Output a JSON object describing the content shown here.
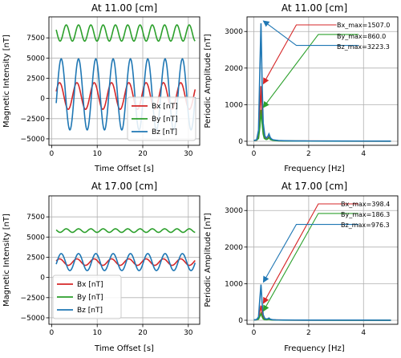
{
  "colors": {
    "Bx": "#d62728",
    "By": "#2ca02c",
    "Bz": "#1f77b4"
  },
  "chart_data": [
    {
      "type": "line",
      "title": "At 11.00 [cm]",
      "xlabel": "Time Offset [s]",
      "ylabel": "Magnetic Intensity [nT]",
      "xlim": [
        -0.6,
        32.5
      ],
      "ylim": [
        -5800,
        10100
      ],
      "xticks": [
        0,
        10,
        20,
        30
      ],
      "yticks": [
        -5000,
        -2500,
        0,
        2500,
        5000,
        7500
      ],
      "ytick_labels": [
        "−5000",
        "−2500",
        "0",
        "2500",
        "5000",
        "7500"
      ],
      "grid": true,
      "legend_position": "lower-right",
      "series": [
        {
          "name": "Bx [nT]",
          "key": "Bx",
          "mean": 300,
          "amplitude": 1650,
          "period": 3.8,
          "phase": -1.3
        },
        {
          "name": "By [nT]",
          "key": "By",
          "mean": 8100,
          "amplitude": 1000,
          "period": 2.7,
          "phase": 0.4
        },
        {
          "name": "Bz [nT]",
          "key": "Bz",
          "mean": 500,
          "amplitude": 4400,
          "period": 3.8,
          "phase": -1.9
        }
      ],
      "x_range": [
        1,
        31.5
      ]
    },
    {
      "type": "line",
      "title": "At 11.00 [cm]",
      "xlabel": "Frequency [Hz]",
      "ylabel": "Periodic Amplitude [nT]",
      "xlim": [
        -0.25,
        5.25
      ],
      "ylim": [
        -110,
        3400
      ],
      "xticks": [
        0,
        2,
        4
      ],
      "yticks": [
        0,
        1000,
        2000,
        3000
      ],
      "grid": true,
      "series": [
        {
          "name": "Bx",
          "key": "Bx",
          "x": [
            0.0,
            0.1,
            0.17,
            0.22,
            0.26,
            0.3,
            0.34,
            0.4,
            0.45,
            0.5,
            0.55,
            0.6,
            0.65,
            0.7,
            0.8,
            0.9,
            1.1,
            1.5,
            2.0,
            3.0,
            4.0,
            5.0
          ],
          "y": [
            20,
            25,
            120,
            900,
            1507,
            700,
            250,
            90,
            60,
            70,
            120,
            60,
            40,
            30,
            20,
            15,
            10,
            8,
            6,
            5,
            4,
            3
          ]
        },
        {
          "name": "By",
          "key": "By",
          "x": [
            0.0,
            0.1,
            0.17,
            0.22,
            0.26,
            0.3,
            0.34,
            0.38,
            0.45,
            0.5,
            0.55,
            0.6,
            0.65,
            0.7,
            0.8,
            0.9,
            1.1,
            1.5,
            2.0,
            3.0,
            4.0,
            5.0
          ],
          "y": [
            20,
            30,
            80,
            400,
            860,
            500,
            200,
            80,
            50,
            60,
            100,
            50,
            35,
            25,
            18,
            12,
            9,
            7,
            5,
            4,
            3,
            3
          ]
        },
        {
          "name": "Bz",
          "key": "Bz",
          "x": [
            0.0,
            0.1,
            0.17,
            0.22,
            0.26,
            0.3,
            0.34,
            0.4,
            0.45,
            0.5,
            0.55,
            0.6,
            0.65,
            0.7,
            0.8,
            0.9,
            1.1,
            1.5,
            2.0,
            3.0,
            4.0,
            5.0
          ],
          "y": [
            20,
            40,
            300,
            2000,
            3223,
            1600,
            500,
            150,
            90,
            120,
            200,
            100,
            60,
            40,
            30,
            20,
            15,
            10,
            8,
            6,
            5,
            4
          ]
        }
      ],
      "annotations": [
        {
          "key": "Bx",
          "text": "Bx_max=1507.0",
          "peak": [
            0.26,
            1507
          ],
          "text_xy": [
            1.55,
            3180
          ],
          "elbow": [
            1.55,
            3180
          ]
        },
        {
          "key": "By",
          "text": "By_max=860.0",
          "peak": [
            0.26,
            860
          ],
          "text_xy": [
            2.35,
            2920
          ],
          "elbow": [
            2.35,
            2920
          ]
        },
        {
          "key": "Bz",
          "text": "Bz_max=3223.3",
          "peak": [
            0.26,
            3223
          ],
          "text_xy": [
            2.35,
            2620
          ],
          "elbow": [
            1.55,
            2620
          ]
        }
      ]
    },
    {
      "type": "line",
      "title": "At 17.00 [cm]",
      "xlabel": "Time Offset [s]",
      "ylabel": "Magnetic Intensity [nT]",
      "xlim": [
        -0.6,
        32.5
      ],
      "ylim": [
        -5800,
        10100
      ],
      "xticks": [
        0,
        10,
        20,
        30
      ],
      "yticks": [
        -5000,
        -2500,
        0,
        2500,
        5000,
        7500
      ],
      "ytick_labels": [
        "−5000",
        "−2500",
        "0",
        "2500",
        "5000",
        "7500"
      ],
      "grid": true,
      "legend_position": "lower-left",
      "series": [
        {
          "name": "Bx [nT]",
          "key": "Bx",
          "mean": 1900,
          "amplitude": 400,
          "period": 3.8,
          "phase": -1.3
        },
        {
          "name": "By [nT]",
          "key": "By",
          "mean": 5800,
          "amplitude": 220,
          "period": 2.7,
          "phase": 0.4
        },
        {
          "name": "Bz [nT]",
          "key": "Bz",
          "mean": 1900,
          "amplitude": 1050,
          "period": 3.8,
          "phase": -1.9
        }
      ],
      "x_range": [
        1,
        31.5
      ]
    },
    {
      "type": "line",
      "title": "At 17.00 [cm]",
      "xlabel": "Frequency [Hz]",
      "ylabel": "Periodic Amplitude [nT]",
      "xlim": [
        -0.25,
        5.25
      ],
      "ylim": [
        -110,
        3400
      ],
      "xticks": [
        0,
        2,
        4
      ],
      "yticks": [
        0,
        1000,
        2000,
        3000
      ],
      "grid": true,
      "series": [
        {
          "name": "Bx",
          "key": "Bx",
          "x": [
            0.0,
            0.1,
            0.17,
            0.22,
            0.26,
            0.3,
            0.34,
            0.4,
            0.45,
            0.5,
            0.55,
            0.6,
            0.65,
            0.7,
            0.8,
            0.9,
            1.1,
            1.5,
            2.0,
            3.0,
            4.0,
            5.0
          ],
          "y": [
            10,
            15,
            40,
            250,
            398,
            200,
            70,
            30,
            20,
            25,
            35,
            20,
            15,
            10,
            8,
            6,
            5,
            4,
            3,
            3,
            2,
            2
          ]
        },
        {
          "name": "By",
          "key": "By",
          "x": [
            0.0,
            0.1,
            0.17,
            0.22,
            0.26,
            0.3,
            0.34,
            0.38,
            0.45,
            0.5,
            0.55,
            0.6,
            0.65,
            0.7,
            0.8,
            0.9,
            1.1,
            1.5,
            2.0,
            3.0,
            4.0,
            5.0
          ],
          "y": [
            10,
            15,
            30,
            110,
            186,
            100,
            40,
            20,
            15,
            18,
            25,
            15,
            10,
            8,
            6,
            5,
            4,
            3,
            3,
            2,
            2,
            2
          ]
        },
        {
          "name": "Bz",
          "key": "Bz",
          "x": [
            0.0,
            0.1,
            0.17,
            0.22,
            0.26,
            0.3,
            0.34,
            0.4,
            0.45,
            0.5,
            0.55,
            0.6,
            0.65,
            0.7,
            0.8,
            0.9,
            1.1,
            1.5,
            2.0,
            3.0,
            4.0,
            5.0
          ],
          "y": [
            10,
            20,
            90,
            600,
            976,
            480,
            150,
            50,
            35,
            40,
            60,
            30,
            20,
            15,
            10,
            8,
            6,
            5,
            4,
            3,
            3,
            2
          ]
        }
      ],
      "annotations": [
        {
          "key": "Bx",
          "text": "Bx_max=398.4",
          "peak": [
            0.26,
            398
          ],
          "text_xy": [
            2.35,
            3180
          ],
          "elbow": [
            2.35,
            3180
          ]
        },
        {
          "key": "By",
          "text": "By_max=186.3",
          "peak": [
            0.26,
            186
          ],
          "text_xy": [
            2.35,
            2920
          ],
          "elbow": [
            2.35,
            2920
          ]
        },
        {
          "key": "Bz",
          "text": "Bz_max=976.3",
          "peak": [
            0.26,
            976
          ],
          "text_xy": [
            2.35,
            2620
          ],
          "elbow": [
            1.55,
            2620
          ]
        }
      ]
    }
  ]
}
